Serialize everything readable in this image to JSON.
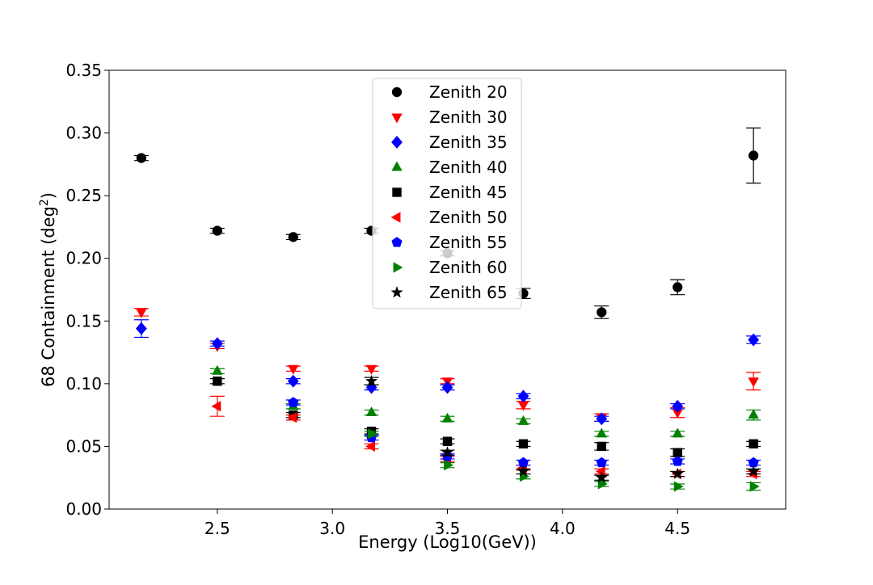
{
  "chart_data": {
    "type": "scatter",
    "title": "",
    "xlabel": "Energy (Log10(GeV))",
    "ylabel_main": "68 Containment (deg",
    "ylabel_sup": "2",
    "ylabel_end": ")",
    "xlim": [
      2.03,
      4.97
    ],
    "ylim": [
      0.0,
      0.35
    ],
    "xticks": [
      2.5,
      3.0,
      3.5,
      4.0,
      4.5
    ],
    "xtick_labels": [
      "2.5",
      "3.0",
      "3.5",
      "4.0",
      "4.5"
    ],
    "yticks": [
      0.0,
      0.05,
      0.1,
      0.15,
      0.2,
      0.25,
      0.3,
      0.35
    ],
    "ytick_labels": [
      "0.00",
      "0.05",
      "0.10",
      "0.15",
      "0.20",
      "0.25",
      "0.30",
      "0.35"
    ],
    "grid": false,
    "legend_placement": "upper-center",
    "series": [
      {
        "name": "Zenith 20",
        "marker": "circle",
        "color": "#000000",
        "points": [
          [
            2.17,
            0.28,
            0.002
          ],
          [
            2.5,
            0.222,
            0.002
          ],
          [
            2.83,
            0.217,
            0.002
          ],
          [
            3.17,
            0.222,
            0.002
          ],
          [
            3.5,
            0.204,
            0.002
          ],
          [
            3.83,
            0.172,
            0.004
          ],
          [
            4.17,
            0.157,
            0.005
          ],
          [
            4.5,
            0.177,
            0.006
          ],
          [
            4.83,
            0.282,
            0.022
          ]
        ]
      },
      {
        "name": "Zenith 30",
        "marker": "triangle-down",
        "color": "#ff0000",
        "points": [
          [
            2.17,
            0.157,
            0.003
          ],
          [
            2.5,
            0.13,
            0.002
          ],
          [
            2.83,
            0.112,
            0.002
          ],
          [
            3.17,
            0.112,
            0.002
          ],
          [
            3.5,
            0.102,
            0.002
          ],
          [
            3.83,
            0.083,
            0.003
          ],
          [
            4.17,
            0.073,
            0.003
          ],
          [
            4.5,
            0.077,
            0.004
          ],
          [
            4.83,
            0.102,
            0.007
          ]
        ]
      },
      {
        "name": "Zenith 35",
        "marker": "diamond",
        "color": "#0000ff",
        "points": [
          [
            2.17,
            0.144,
            0.007
          ],
          [
            2.5,
            0.132,
            0.002
          ],
          [
            2.83,
            0.102,
            0.002
          ],
          [
            3.17,
            0.097,
            0.002
          ],
          [
            3.5,
            0.097,
            0.002
          ],
          [
            3.83,
            0.09,
            0.002
          ],
          [
            4.17,
            0.072,
            0.002
          ],
          [
            4.5,
            0.082,
            0.002
          ],
          [
            4.83,
            0.135,
            0.003
          ]
        ]
      },
      {
        "name": "Zenith 40",
        "marker": "triangle-up",
        "color": "#008000",
        "points": [
          [
            2.5,
            0.11,
            0.002
          ],
          [
            2.83,
            0.082,
            0.002
          ],
          [
            3.17,
            0.077,
            0.002
          ],
          [
            3.5,
            0.072,
            0.002
          ],
          [
            3.83,
            0.07,
            0.002
          ],
          [
            4.17,
            0.06,
            0.002
          ],
          [
            4.5,
            0.06,
            0.002
          ],
          [
            4.83,
            0.075,
            0.004
          ]
        ]
      },
      {
        "name": "Zenith 45",
        "marker": "square",
        "color": "#000000",
        "points": [
          [
            2.5,
            0.102,
            0.002
          ],
          [
            2.83,
            0.075,
            0.002
          ],
          [
            3.17,
            0.062,
            0.002
          ],
          [
            3.5,
            0.054,
            0.002
          ],
          [
            3.83,
            0.052,
            0.002
          ],
          [
            4.17,
            0.05,
            0.003
          ],
          [
            4.5,
            0.045,
            0.003
          ],
          [
            4.83,
            0.052,
            0.002
          ]
        ]
      },
      {
        "name": "Zenith 50",
        "marker": "triangle-left",
        "color": "#ff0000",
        "points": [
          [
            2.5,
            0.082,
            0.008
          ],
          [
            2.83,
            0.073,
            0.002
          ],
          [
            3.17,
            0.05,
            0.002
          ],
          [
            3.5,
            0.04,
            0.002
          ],
          [
            3.83,
            0.033,
            0.002
          ],
          [
            4.17,
            0.03,
            0.002
          ],
          [
            4.5,
            0.028,
            0.002
          ],
          [
            4.83,
            0.028,
            0.002
          ]
        ]
      },
      {
        "name": "Zenith 55",
        "marker": "pentagon",
        "color": "#0000ff",
        "points": [
          [
            2.83,
            0.085,
            0.002
          ],
          [
            3.17,
            0.057,
            0.002
          ],
          [
            3.5,
            0.042,
            0.002
          ],
          [
            3.83,
            0.037,
            0.002
          ],
          [
            4.17,
            0.037,
            0.002
          ],
          [
            4.5,
            0.038,
            0.002
          ],
          [
            4.83,
            0.037,
            0.002
          ]
        ]
      },
      {
        "name": "Zenith 60",
        "marker": "triangle-right",
        "color": "#008000",
        "points": [
          [
            3.17,
            0.06,
            0.002
          ],
          [
            3.5,
            0.035,
            0.002
          ],
          [
            3.83,
            0.026,
            0.002
          ],
          [
            4.17,
            0.02,
            0.002
          ],
          [
            4.5,
            0.018,
            0.002
          ],
          [
            4.83,
            0.018,
            0.003
          ]
        ]
      },
      {
        "name": "Zenith 65",
        "marker": "star",
        "color": "#000000",
        "points": [
          [
            3.17,
            0.102,
            0.003
          ],
          [
            3.5,
            0.045,
            0.002
          ],
          [
            3.83,
            0.03,
            0.002
          ],
          [
            4.17,
            0.025,
            0.002
          ],
          [
            4.5,
            0.028,
            0.002
          ],
          [
            4.83,
            0.03,
            0.002
          ]
        ]
      }
    ]
  }
}
